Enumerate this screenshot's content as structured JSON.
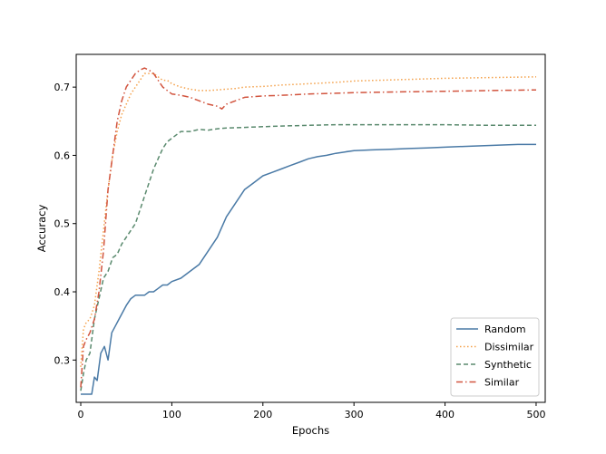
{
  "chart_data": {
    "type": "line",
    "title": "",
    "xlabel": "Epochs",
    "ylabel": "Accuracy",
    "xlim": [
      -5,
      510
    ],
    "ylim": [
      0.238,
      0.748
    ],
    "xticks": [
      0,
      100,
      200,
      300,
      400,
      500
    ],
    "yticks": [
      0.3,
      0.4,
      0.5,
      0.6,
      0.7
    ],
    "xtick_labels": [
      "0",
      "100",
      "200",
      "300",
      "400",
      "500"
    ],
    "ytick_labels": [
      "0.3",
      "0.4",
      "0.5",
      "0.6",
      "0.7"
    ],
    "grid": false,
    "legend_position": "lower-right",
    "series": [
      {
        "name": "Random",
        "color": "#4a7aa6",
        "dash": "solid",
        "x": [
          0,
          3,
          8,
          12,
          15,
          18,
          22,
          26,
          30,
          34,
          38,
          42,
          46,
          50,
          55,
          60,
          65,
          70,
          75,
          80,
          85,
          90,
          95,
          100,
          110,
          120,
          130,
          140,
          150,
          160,
          170,
          180,
          190,
          200,
          210,
          220,
          230,
          240,
          250,
          260,
          270,
          280,
          290,
          300,
          320,
          340,
          360,
          380,
          400,
          420,
          440,
          460,
          480,
          500
        ],
        "y": [
          0.25,
          0.25,
          0.25,
          0.25,
          0.275,
          0.27,
          0.31,
          0.32,
          0.3,
          0.34,
          0.35,
          0.36,
          0.37,
          0.38,
          0.39,
          0.395,
          0.395,
          0.395,
          0.4,
          0.4,
          0.405,
          0.41,
          0.41,
          0.415,
          0.42,
          0.43,
          0.44,
          0.46,
          0.48,
          0.51,
          0.53,
          0.55,
          0.56,
          0.57,
          0.575,
          0.58,
          0.585,
          0.59,
          0.595,
          0.598,
          0.6,
          0.603,
          0.605,
          0.607,
          0.608,
          0.609,
          0.61,
          0.611,
          0.612,
          0.613,
          0.614,
          0.615,
          0.616,
          0.616
        ]
      },
      {
        "name": "Dissimilar",
        "color": "#f4a14a",
        "dash": "dotted",
        "x": [
          0,
          3,
          6,
          10,
          15,
          20,
          25,
          30,
          35,
          40,
          45,
          50,
          55,
          60,
          65,
          70,
          75,
          80,
          85,
          90,
          95,
          100,
          110,
          120,
          130,
          140,
          150,
          160,
          170,
          180,
          200,
          220,
          250,
          280,
          300,
          350,
          400,
          450,
          500
        ],
        "y": [
          0.29,
          0.345,
          0.355,
          0.36,
          0.38,
          0.43,
          0.49,
          0.55,
          0.6,
          0.635,
          0.66,
          0.675,
          0.69,
          0.7,
          0.71,
          0.72,
          0.72,
          0.72,
          0.715,
          0.71,
          0.71,
          0.705,
          0.7,
          0.697,
          0.695,
          0.695,
          0.696,
          0.697,
          0.698,
          0.7,
          0.701,
          0.703,
          0.705,
          0.707,
          0.709,
          0.711,
          0.713,
          0.714,
          0.715
        ]
      },
      {
        "name": "Synthetic",
        "color": "#5a8a6e",
        "dash": "dashed",
        "x": [
          0,
          3,
          6,
          10,
          15,
          20,
          25,
          30,
          35,
          40,
          45,
          50,
          55,
          60,
          65,
          70,
          75,
          80,
          85,
          90,
          95,
          100,
          105,
          110,
          120,
          130,
          140,
          150,
          160,
          180,
          200,
          220,
          250,
          280,
          300,
          350,
          400,
          450,
          500
        ],
        "y": [
          0.255,
          0.28,
          0.3,
          0.31,
          0.36,
          0.39,
          0.42,
          0.43,
          0.45,
          0.455,
          0.47,
          0.48,
          0.49,
          0.5,
          0.52,
          0.54,
          0.56,
          0.58,
          0.595,
          0.61,
          0.62,
          0.625,
          0.63,
          0.635,
          0.635,
          0.638,
          0.637,
          0.639,
          0.64,
          0.641,
          0.642,
          0.643,
          0.644,
          0.645,
          0.645,
          0.645,
          0.645,
          0.644,
          0.644
        ]
      },
      {
        "name": "Similar",
        "color": "#d2553f",
        "dash": "dashdot",
        "x": [
          0,
          3,
          6,
          10,
          15,
          20,
          25,
          30,
          35,
          40,
          45,
          50,
          55,
          60,
          65,
          70,
          75,
          80,
          85,
          90,
          95,
          100,
          110,
          120,
          130,
          140,
          150,
          155,
          160,
          170,
          180,
          200,
          220,
          250,
          280,
          300,
          350,
          400,
          450,
          500
        ],
        "y": [
          0.26,
          0.32,
          0.33,
          0.34,
          0.36,
          0.4,
          0.46,
          0.55,
          0.6,
          0.65,
          0.68,
          0.7,
          0.71,
          0.72,
          0.725,
          0.728,
          0.725,
          0.72,
          0.71,
          0.7,
          0.695,
          0.69,
          0.688,
          0.685,
          0.68,
          0.675,
          0.672,
          0.668,
          0.675,
          0.68,
          0.685,
          0.687,
          0.688,
          0.69,
          0.691,
          0.692,
          0.693,
          0.694,
          0.695,
          0.696
        ]
      }
    ]
  }
}
